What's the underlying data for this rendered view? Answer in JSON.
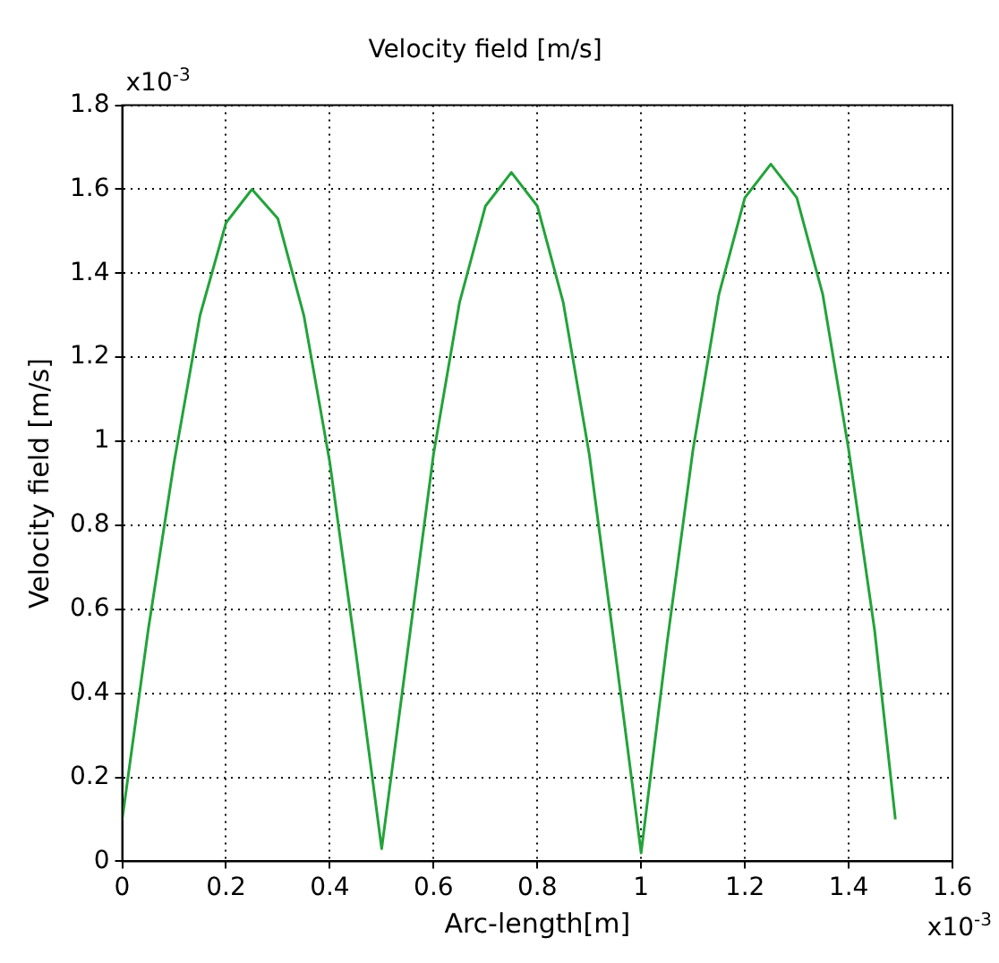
{
  "chart_data": {
    "type": "line",
    "title": "Velocity field [m/s]",
    "xlabel": "Arc-length[m]",
    "ylabel": "Velocity field [m/s]",
    "annotations": [
      "x10$^{-3}$",
      "x10$^{-3}$"
    ],
    "x": [
      0,
      0.05,
      0.1,
      0.15,
      0.2,
      0.25,
      0.3,
      0.35,
      0.4,
      0.45,
      0.5,
      0.55,
      0.6,
      0.65,
      0.7,
      0.75,
      0.8,
      0.85,
      0.9,
      0.95,
      1.0,
      1.05,
      1.1,
      1.15,
      1.2,
      1.25,
      1.3,
      1.35,
      1.4,
      1.45,
      1.49
    ],
    "series": [
      {
        "color": "#22a33a",
        "values": [
          0.1,
          0.55,
          0.95,
          1.3,
          1.52,
          1.6,
          1.53,
          1.3,
          0.95,
          0.5,
          0.03,
          0.5,
          0.97,
          1.33,
          1.56,
          1.64,
          1.56,
          1.33,
          0.97,
          0.5,
          0.02,
          0.52,
          0.98,
          1.35,
          1.58,
          1.66,
          1.58,
          1.35,
          0.98,
          0.55,
          0.1
        ]
      }
    ],
    "xlim": [
      0,
      1.6
    ],
    "xticks": [
      0,
      0.2,
      0.4,
      0.6,
      0.8,
      1,
      1.2,
      1.4,
      1.6
    ],
    "ylim": [
      0,
      1.8
    ],
    "yticks": [
      0,
      0.2,
      0.4,
      0.6,
      0.8,
      1,
      1.2,
      1.4,
      1.6,
      1.8
    ],
    "grid": true,
    "line_style": "solid",
    "marker": "none",
    "legend": false
  }
}
